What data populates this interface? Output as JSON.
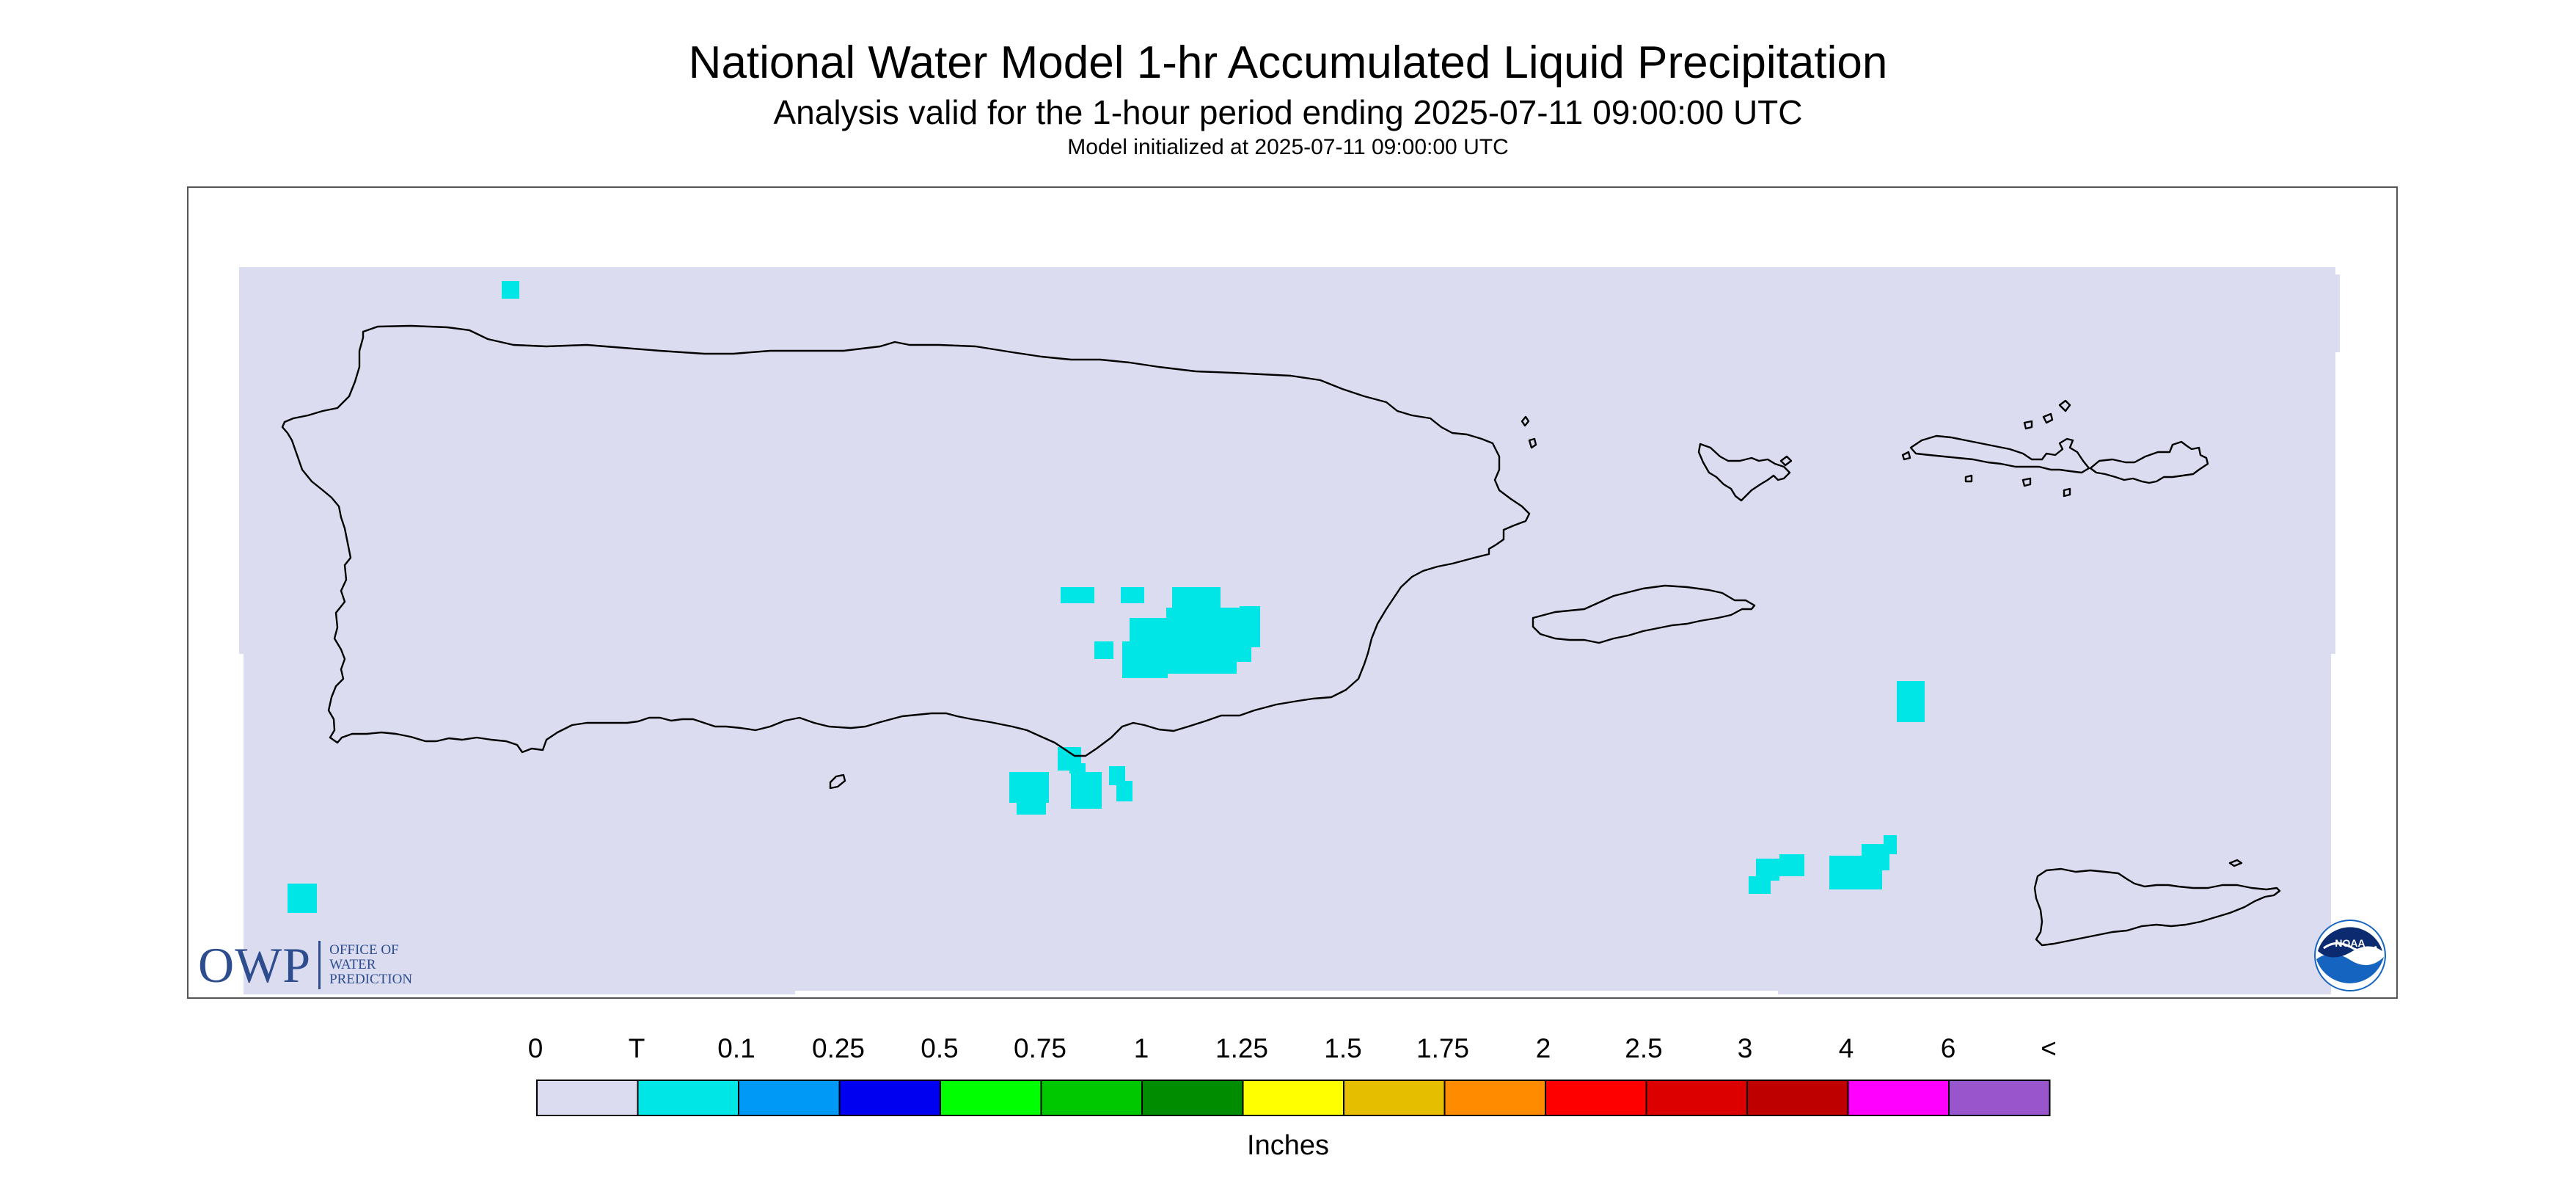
{
  "header": {
    "title": "National Water Model 1-hr Accumulated Liquid Precipitation",
    "subtitle": "Analysis valid for the 1-hour period ending 2025-07-11 09:00:00 UTC",
    "init": "Model initialized at 2025-07-11 09:00:00 UTC"
  },
  "colors": {
    "no_precip": "#dcdcf0",
    "trace": "#00e5e5",
    "coast": "#000000",
    "owp": "#2e4d8f",
    "noaa_blue": "#1565c0"
  },
  "logos": {
    "owp_big": "OWP",
    "owp_lines": [
      "OFFICE OF",
      "WATER",
      "PREDICTION"
    ],
    "noaa": "NOAA"
  },
  "legend": {
    "labels": [
      "0",
      "T",
      "0.1",
      "0.25",
      "0.5",
      "0.75",
      "1",
      "1.25",
      "1.5",
      "1.75",
      "2",
      "2.5",
      "3",
      "4",
      "6",
      "<"
    ],
    "colors": [
      "#dcdcf0",
      "#00e5e5",
      "#0099f5",
      "#0000f0",
      "#00ff00",
      "#00c800",
      "#008c00",
      "#ffff00",
      "#e6be00",
      "#ff8c00",
      "#ff0000",
      "#dc0000",
      "#be0000",
      "#ff00ff",
      "#9955cc"
    ],
    "units": "Inches"
  }
}
